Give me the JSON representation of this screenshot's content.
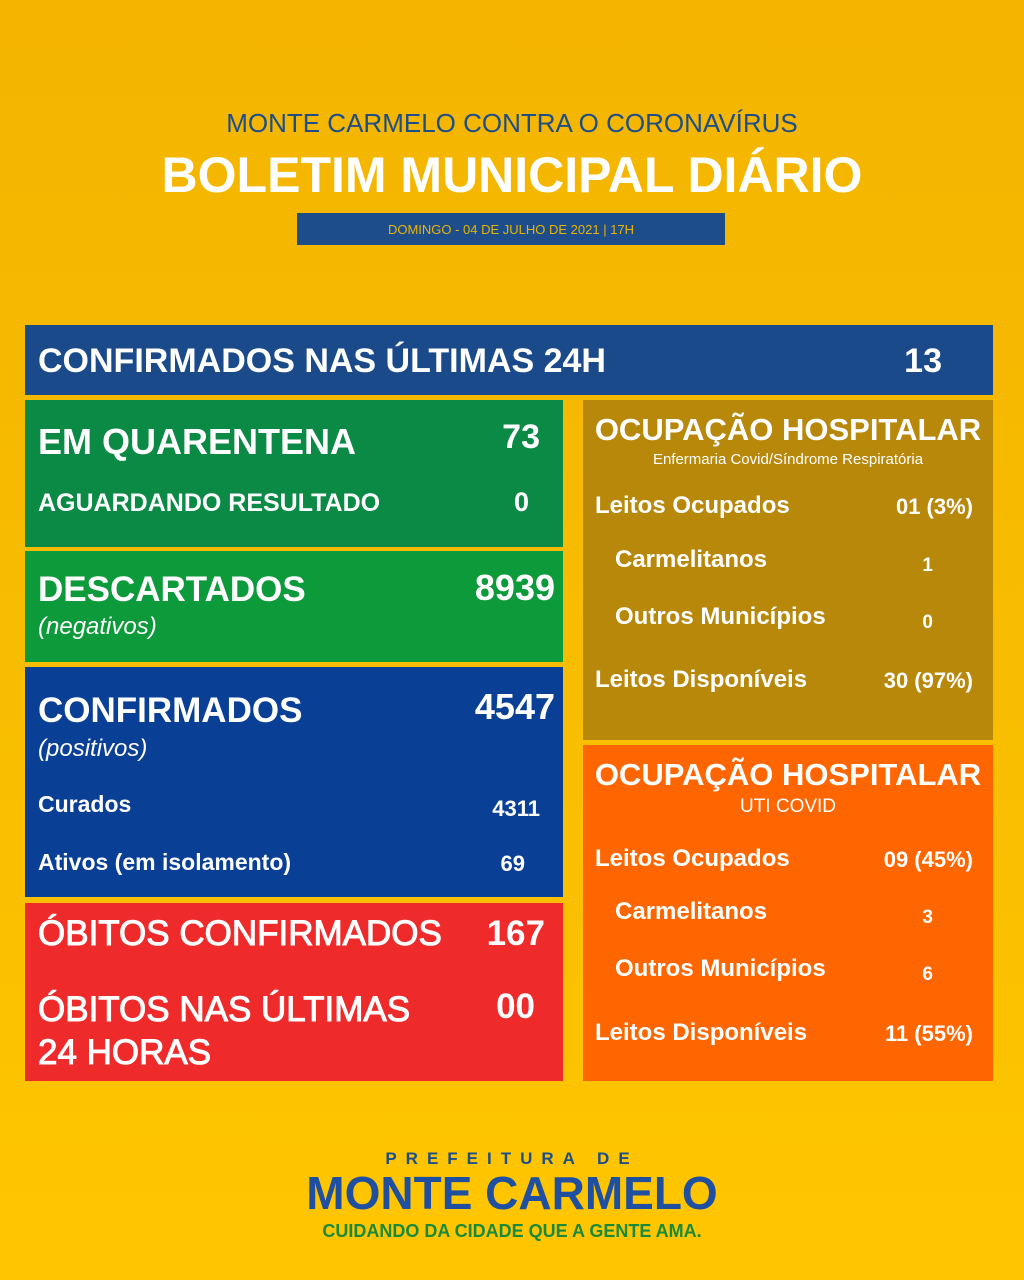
{
  "header": {
    "subtitle": "MONTE CARMELO CONTRA O CORONAVÍRUS",
    "title": "BOLETIM MUNICIPAL DIÁRIO",
    "date": "DOMINGO - 04 DE JULHO DE 2021 | 17H"
  },
  "confirmed_24h": {
    "label": "CONFIRMADOS NAS ÚLTIMAS 24H",
    "value": "13"
  },
  "quarantine": {
    "label": "EM QUARENTENA",
    "value": "73",
    "awaiting_label": "AGUARDANDO RESULTADO",
    "awaiting_value": "0"
  },
  "discarded": {
    "label": "DESCARTADOS",
    "note": "(negativos)",
    "value": "8939"
  },
  "confirmed": {
    "label": "CONFIRMADOS",
    "note": "(positivos)",
    "value": "4547",
    "recovered_label": "Curados",
    "recovered_value": "4311",
    "active_label": "Ativos (em isolamento)",
    "active_value": "69"
  },
  "deaths": {
    "label": "ÓBITOS CONFIRMADOS",
    "value": "167",
    "last24_label": "ÓBITOS NAS ÚLTIMAS 24 HORAS",
    "last24_value": "00"
  },
  "ward": {
    "title": "OCUPAÇÃO HOSPITALAR",
    "subtitle": "Enfermaria Covid/Síndrome Respiratória",
    "rows": [
      {
        "label": "Leitos Ocupados",
        "value": "01 (3%)"
      },
      {
        "label": "Carmelitanos",
        "value": "1"
      },
      {
        "label": "Outros Municípios",
        "value": "0"
      },
      {
        "label": "Leitos Disponíveis",
        "value": "30 (97%)"
      }
    ]
  },
  "icu": {
    "title": "OCUPAÇÃO HOSPITALAR",
    "subtitle": "UTI COVID",
    "rows": [
      {
        "label": "Leitos Ocupados",
        "value": "09 (45%)"
      },
      {
        "label": "Carmelitanos",
        "value": "3"
      },
      {
        "label": "Outros Municípios",
        "value": "6"
      },
      {
        "label": "Leitos Disponíveis",
        "value": "11 (55%)"
      }
    ]
  },
  "footer": {
    "prefix": "PREFEITURA DE",
    "name": "MONTE CARMELO",
    "slogan": "CUIDANDO DA CIDADE QUE A GENTE AMA."
  }
}
